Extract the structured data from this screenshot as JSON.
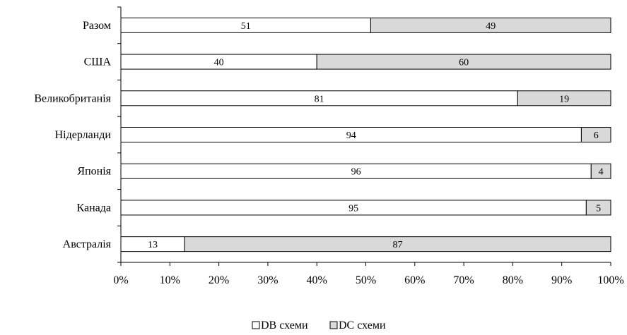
{
  "chart_data": {
    "type": "bar",
    "orientation": "horizontal",
    "stacked": "percent",
    "title": "",
    "xlabel": "",
    "ylabel": "",
    "categories": [
      "Разом",
      "США",
      "Великобританія",
      "Нідерланди",
      "Японія",
      "Канада",
      "Австралія"
    ],
    "series": [
      {
        "name": "DB схеми",
        "values": [
          51,
          40,
          81,
          94,
          96,
          95,
          13
        ],
        "color": "#ffffff"
      },
      {
        "name": "DC схеми",
        "values": [
          49,
          60,
          19,
          6,
          4,
          5,
          87
        ],
        "color": "#d9d9d9"
      }
    ],
    "xlim": [
      0,
      100
    ],
    "x_ticks": [
      "0%",
      "10%",
      "20%",
      "30%",
      "40%",
      "50%",
      "60%",
      "70%",
      "80%",
      "90%",
      "100%"
    ],
    "grid": false,
    "legend_position": "bottom"
  }
}
